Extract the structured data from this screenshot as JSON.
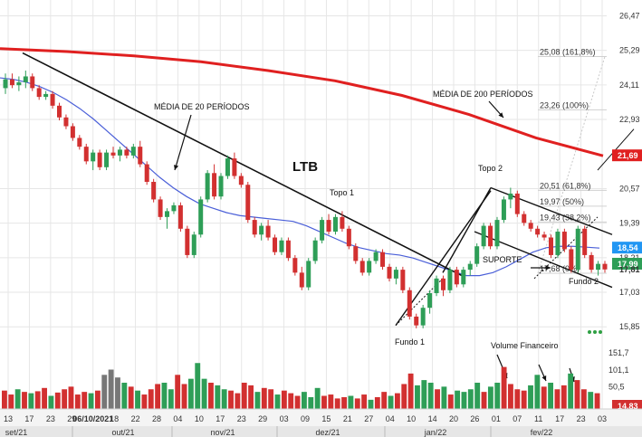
{
  "colors": {
    "up": "#2e9e57",
    "down": "#d23030",
    "ma200": "#e02020",
    "ma20": "#4a5fd8",
    "badge_ma200": "#e02020",
    "badge_ma20": "#2196f3",
    "badge_price": "#2e9e57",
    "badge_volume": "#d23030",
    "grid": "#e6e6e6",
    "fib": "#d0d0d0"
  },
  "annotations": {
    "ltb": "LTB",
    "media20": "MÉDIA DE 20 PERÍODOS",
    "media200": "MÉDIA DE 200 PERÍODOS",
    "topo1": "Topo 1",
    "topo2": "Topo 2",
    "fundo1": "Fundo 1",
    "fundo2": "Fundo 2",
    "suporte": "SUPORTE",
    "volume": "Volume Financeiro"
  },
  "chart_data": {
    "type": "candlestick",
    "title": "",
    "price_axis": {
      "ticks": [
        "26,47",
        "25,29",
        "24,11",
        "22,93",
        "20,57",
        "19,39",
        "18,21",
        "17,03",
        "15,85"
      ],
      "ylim": [
        14.9,
        26.7
      ]
    },
    "volume_axis": {
      "ticks": [
        "151,7",
        "101,1",
        "50,5"
      ]
    },
    "x_axis": {
      "day_labels": [
        "13",
        "17",
        "23",
        "29",
        "06/10/2021",
        "18",
        "22",
        "28",
        "04",
        "10",
        "17",
        "23",
        "29",
        "03",
        "09",
        "15",
        "21",
        "27",
        "04",
        "10",
        "14",
        "20",
        "26",
        "01",
        "07",
        "11",
        "17",
        "23",
        "03"
      ],
      "highlighted_label": "06/10/2021",
      "months": [
        "set/21",
        "out/21",
        "nov/21",
        "dez/21",
        "jan/22",
        "fev/22"
      ]
    },
    "fibonacci": [
      {
        "label": "25,08 (161,8%)",
        "value": 25.08
      },
      {
        "label": "23,26 (100%)",
        "value": 23.26
      },
      {
        "label": "20,51 (61,8%)",
        "value": 20.51
      },
      {
        "label": "19,97 (50%)",
        "value": 19.97
      },
      {
        "label": "19,43 (38,2%)",
        "value": 19.43
      },
      {
        "label": "17,68 (0%)",
        "value": 17.68
      }
    ],
    "price_badges": [
      {
        "label": "21,69",
        "value": 21.69,
        "color_key": "badge_ma200"
      },
      {
        "label": "18,54",
        "value": 18.54,
        "color_key": "badge_ma20"
      },
      {
        "label": "17,99",
        "value": 17.99,
        "color_key": "badge_price"
      },
      {
        "label": "17,81",
        "value": 17.81,
        "color_key": "none"
      }
    ],
    "volume_badge": {
      "label": "14,83",
      "value": 14.83
    },
    "ma200": [
      25.35,
      25.25,
      25.1,
      24.9,
      24.6,
      24.25,
      23.75,
      23.1,
      22.3,
      21.69
    ],
    "candles": [
      [
        24.0,
        24.5,
        23.8,
        24.3
      ],
      [
        24.3,
        24.5,
        24.0,
        24.1
      ],
      [
        24.1,
        24.4,
        23.9,
        24.2
      ],
      [
        24.2,
        24.6,
        24.0,
        24.4
      ],
      [
        24.4,
        24.5,
        23.9,
        24.0
      ],
      [
        24.0,
        24.1,
        23.6,
        23.7
      ],
      [
        23.7,
        23.9,
        23.6,
        23.8
      ],
      [
        23.8,
        23.9,
        23.3,
        23.4
      ],
      [
        23.4,
        23.5,
        22.9,
        23.0
      ],
      [
        23.0,
        23.1,
        22.6,
        22.7
      ],
      [
        22.7,
        22.8,
        22.2,
        22.3
      ],
      [
        22.3,
        22.4,
        21.9,
        22.0
      ],
      [
        22.0,
        22.1,
        21.4,
        21.5
      ],
      [
        21.5,
        21.9,
        21.2,
        21.8
      ],
      [
        21.8,
        21.9,
        21.2,
        21.3
      ],
      [
        21.3,
        21.9,
        21.2,
        21.8
      ],
      [
        21.8,
        22.0,
        21.6,
        21.7
      ],
      [
        21.7,
        22.0,
        21.5,
        21.9
      ],
      [
        21.9,
        22.0,
        21.6,
        21.7
      ],
      [
        21.7,
        22.1,
        21.6,
        22.0
      ],
      [
        22.0,
        22.2,
        21.3,
        21.4
      ],
      [
        21.4,
        21.5,
        20.7,
        20.8
      ],
      [
        20.8,
        20.9,
        20.1,
        20.2
      ],
      [
        20.2,
        20.3,
        19.5,
        19.6
      ],
      [
        19.6,
        19.9,
        19.2,
        19.8
      ],
      [
        19.8,
        20.1,
        19.7,
        20.0
      ],
      [
        20.0,
        20.1,
        19.1,
        19.2
      ],
      [
        19.2,
        19.3,
        18.2,
        18.3
      ],
      [
        18.3,
        19.1,
        18.2,
        19.0
      ],
      [
        19.0,
        20.3,
        18.9,
        20.2
      ],
      [
        20.2,
        21.2,
        20.1,
        21.1
      ],
      [
        21.1,
        21.4,
        20.2,
        20.3
      ],
      [
        20.3,
        21.1,
        20.2,
        21.0
      ],
      [
        21.0,
        21.7,
        20.9,
        21.6
      ],
      [
        21.6,
        21.8,
        20.9,
        21.0
      ],
      [
        21.0,
        21.1,
        20.6,
        20.7
      ],
      [
        20.7,
        20.8,
        19.4,
        19.5
      ],
      [
        19.5,
        19.6,
        18.9,
        19.0
      ],
      [
        19.0,
        19.4,
        18.8,
        19.3
      ],
      [
        19.3,
        19.5,
        18.8,
        18.9
      ],
      [
        18.9,
        19.0,
        18.3,
        18.4
      ],
      [
        18.4,
        18.9,
        18.3,
        18.8
      ],
      [
        18.8,
        18.9,
        18.1,
        18.2
      ],
      [
        18.2,
        18.3,
        17.6,
        17.7
      ],
      [
        17.7,
        17.9,
        17.1,
        17.2
      ],
      [
        17.2,
        18.2,
        17.1,
        18.1
      ],
      [
        18.1,
        18.9,
        18.0,
        18.8
      ],
      [
        18.8,
        19.6,
        18.7,
        19.5
      ],
      [
        19.5,
        19.7,
        19.0,
        19.1
      ],
      [
        19.1,
        19.7,
        19.0,
        19.6
      ],
      [
        19.6,
        19.8,
        19.1,
        19.2
      ],
      [
        19.2,
        19.3,
        18.5,
        18.6
      ],
      [
        18.6,
        18.7,
        18.0,
        18.1
      ],
      [
        18.1,
        18.2,
        17.6,
        17.7
      ],
      [
        17.7,
        18.2,
        17.6,
        18.1
      ],
      [
        18.1,
        18.5,
        18.0,
        18.4
      ],
      [
        18.4,
        18.5,
        17.8,
        17.9
      ],
      [
        17.9,
        18.0,
        17.4,
        17.5
      ],
      [
        17.5,
        17.9,
        17.3,
        17.8
      ],
      [
        17.8,
        17.9,
        17.0,
        17.1
      ],
      [
        17.1,
        17.2,
        16.1,
        16.2
      ],
      [
        16.2,
        16.3,
        15.8,
        15.9
      ],
      [
        15.9,
        16.6,
        15.8,
        16.5
      ],
      [
        16.5,
        17.1,
        16.3,
        17.0
      ],
      [
        17.0,
        17.6,
        16.9,
        17.5
      ],
      [
        17.5,
        17.6,
        16.9,
        17.1
      ],
      [
        17.1,
        17.9,
        17.0,
        17.8
      ],
      [
        17.8,
        17.9,
        17.2,
        17.3
      ],
      [
        17.3,
        17.9,
        17.2,
        17.8
      ],
      [
        17.8,
        18.1,
        17.6,
        18.0
      ],
      [
        18.0,
        18.7,
        17.9,
        18.6
      ],
      [
        18.6,
        19.4,
        18.5,
        19.3
      ],
      [
        19.3,
        19.4,
        18.5,
        18.6
      ],
      [
        18.6,
        19.6,
        18.5,
        19.5
      ],
      [
        19.5,
        20.3,
        19.4,
        20.2
      ],
      [
        20.2,
        20.6,
        19.9,
        20.4
      ],
      [
        20.4,
        20.5,
        19.6,
        19.7
      ],
      [
        19.7,
        19.8,
        19.3,
        19.4
      ],
      [
        19.4,
        19.5,
        19.1,
        19.2
      ],
      [
        19.2,
        19.3,
        18.9,
        19.0
      ],
      [
        19.0,
        19.1,
        18.8,
        18.9
      ],
      [
        18.9,
        19.0,
        18.2,
        18.3
      ],
      [
        18.3,
        19.2,
        18.2,
        19.1
      ],
      [
        19.1,
        19.2,
        18.4,
        18.5
      ],
      [
        18.5,
        18.6,
        17.7,
        17.8
      ],
      [
        17.8,
        19.3,
        17.7,
        19.2
      ],
      [
        19.2,
        19.3,
        18.2,
        18.3
      ],
      [
        18.3,
        18.4,
        17.7,
        17.8
      ],
      [
        17.8,
        18.1,
        17.6,
        18.0
      ],
      [
        18.0,
        18.1,
        17.7,
        17.81
      ]
    ],
    "ma20": [
      24.35,
      24.3,
      24.2,
      24.05,
      23.85,
      23.6,
      23.3,
      22.95,
      22.55,
      22.15,
      21.75,
      21.35,
      20.95,
      20.6,
      20.3,
      20.05,
      19.9,
      19.75,
      19.65,
      19.6,
      19.55,
      19.5,
      19.45,
      19.3,
      19.1,
      18.9,
      18.7,
      18.55,
      18.45,
      18.35,
      18.3,
      18.2,
      18.05,
      17.9,
      17.75,
      17.6,
      17.6,
      17.7,
      17.9,
      18.15,
      18.4,
      18.55,
      18.6,
      18.6,
      18.57,
      18.54
    ],
    "volume": [
      [
        28,
        "down"
      ],
      [
        22,
        "down"
      ],
      [
        30,
        "up"
      ],
      [
        26,
        "down"
      ],
      [
        24,
        "up"
      ],
      [
        27,
        "down"
      ],
      [
        32,
        "down"
      ],
      [
        20,
        "up"
      ],
      [
        25,
        "down"
      ],
      [
        30,
        "down"
      ],
      [
        34,
        "down"
      ],
      [
        22,
        "down"
      ],
      [
        26,
        "down"
      ],
      [
        24,
        "up"
      ],
      [
        28,
        "down"
      ],
      [
        52,
        "gray"
      ],
      [
        60,
        "gray"
      ],
      [
        48,
        "gray"
      ],
      [
        40,
        "up"
      ],
      [
        34,
        "down"
      ],
      [
        28,
        "up"
      ],
      [
        22,
        "down"
      ],
      [
        30,
        "down"
      ],
      [
        38,
        "down"
      ],
      [
        40,
        "up"
      ],
      [
        30,
        "up"
      ],
      [
        52,
        "down"
      ],
      [
        38,
        "down"
      ],
      [
        46,
        "up"
      ],
      [
        70,
        "up"
      ],
      [
        46,
        "up"
      ],
      [
        40,
        "down"
      ],
      [
        36,
        "up"
      ],
      [
        30,
        "up"
      ],
      [
        28,
        "down"
      ],
      [
        24,
        "down"
      ],
      [
        40,
        "down"
      ],
      [
        36,
        "down"
      ],
      [
        26,
        "up"
      ],
      [
        32,
        "down"
      ],
      [
        30,
        "down"
      ],
      [
        22,
        "up"
      ],
      [
        28,
        "down"
      ],
      [
        24,
        "down"
      ],
      [
        20,
        "down"
      ],
      [
        26,
        "up"
      ],
      [
        18,
        "up"
      ],
      [
        32,
        "up"
      ],
      [
        20,
        "down"
      ],
      [
        22,
        "down"
      ],
      [
        16,
        "down"
      ],
      [
        18,
        "down"
      ],
      [
        20,
        "up"
      ],
      [
        16,
        "down"
      ],
      [
        22,
        "down"
      ],
      [
        14,
        "up"
      ],
      [
        18,
        "down"
      ],
      [
        26,
        "down"
      ],
      [
        20,
        "up"
      ],
      [
        24,
        "down"
      ],
      [
        38,
        "down"
      ],
      [
        54,
        "down"
      ],
      [
        36,
        "up"
      ],
      [
        44,
        "up"
      ],
      [
        40,
        "up"
      ],
      [
        30,
        "down"
      ],
      [
        34,
        "up"
      ],
      [
        22,
        "down"
      ],
      [
        28,
        "up"
      ],
      [
        26,
        "up"
      ],
      [
        30,
        "up"
      ],
      [
        40,
        "up"
      ],
      [
        26,
        "down"
      ],
      [
        34,
        "up"
      ],
      [
        40,
        "up"
      ],
      [
        64,
        "down"
      ],
      [
        38,
        "down"
      ],
      [
        30,
        "down"
      ],
      [
        28,
        "down"
      ],
      [
        36,
        "up"
      ],
      [
        52,
        "up"
      ],
      [
        34,
        "down"
      ],
      [
        40,
        "up"
      ],
      [
        30,
        "down"
      ],
      [
        36,
        "down"
      ],
      [
        54,
        "up"
      ],
      [
        44,
        "down"
      ],
      [
        30,
        "down"
      ],
      [
        26,
        "up"
      ],
      [
        24,
        "down"
      ]
    ]
  }
}
